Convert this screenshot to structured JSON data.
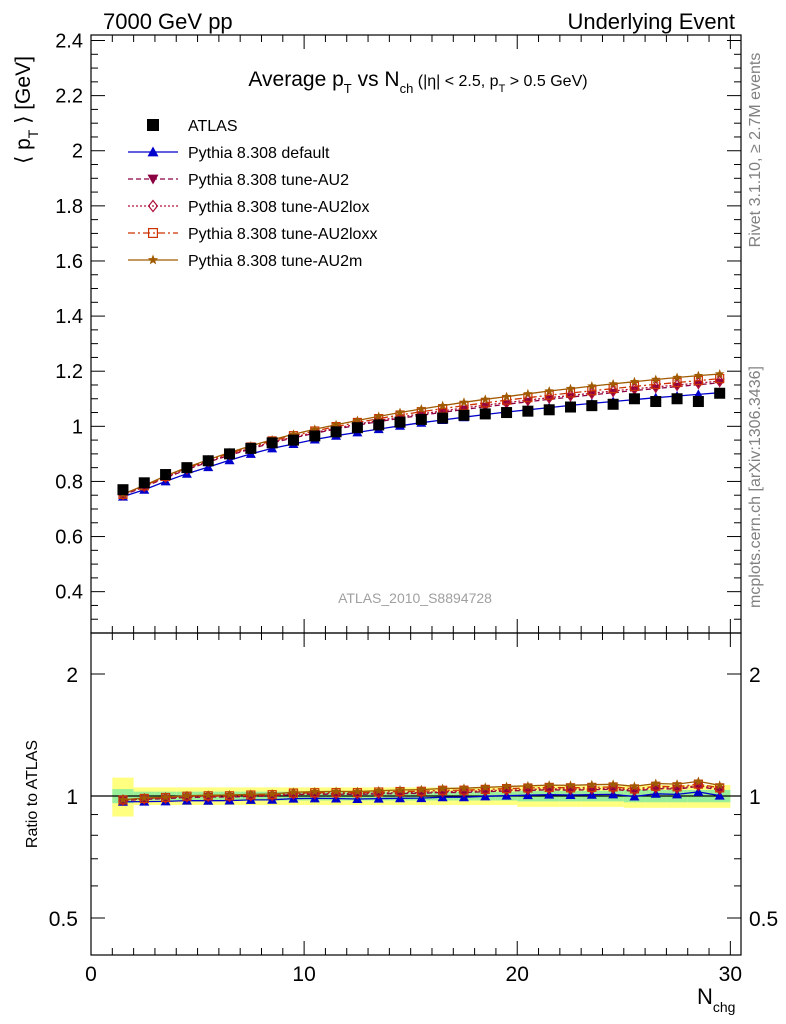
{
  "header": {
    "left": "7000 GeV pp",
    "right": "Underlying Event"
  },
  "side": {
    "rivet": "Rivet 3.1.10, ≥ 2.7M events",
    "mcplots": "mcplots.cern.ch [arXiv:1306.3436]"
  },
  "chart_data": {
    "type": "scatter",
    "title": "Average p_T vs N_ch (|η| < 2.5, p_T > 0.5 GeV)",
    "analysis_label": "ATLAS_2010_S8894728",
    "xlabel": "N_chg",
    "ylabel": "⟨ p_T ⟩ [GeV]",
    "ratio_ylabel": "Ratio to ATLAS",
    "xlim": [
      0,
      30.5
    ],
    "ylim": [
      0.25,
      2.42
    ],
    "ratio_ylim": [
      0.35,
      2.5
    ],
    "ratio_log_scale": true,
    "x_ticks": [
      "0",
      "10",
      "20",
      "30"
    ],
    "y_ticks": [
      "0.4",
      "0.6",
      "0.8",
      "1",
      "1.2",
      "1.4",
      "1.6",
      "1.8",
      "2",
      "2.2",
      "2.4"
    ],
    "ratio_ticks": [
      "0.5",
      "1",
      "2"
    ],
    "legend_position": "top-left",
    "x": [
      1.5,
      2.5,
      3.5,
      4.5,
      5.5,
      6.5,
      7.5,
      8.5,
      9.5,
      10.5,
      11.5,
      12.5,
      13.5,
      14.5,
      15.5,
      16.5,
      17.5,
      18.5,
      19.5,
      20.5,
      21.5,
      22.5,
      23.5,
      24.5,
      25.5,
      26.5,
      27.5,
      28.5,
      29.5
    ],
    "series": [
      {
        "name": "ATLAS",
        "color": "#000000",
        "marker": "square",
        "line": "none",
        "values": [
          0.77,
          0.795,
          0.825,
          0.85,
          0.875,
          0.9,
          0.92,
          0.94,
          0.95,
          0.965,
          0.98,
          0.995,
          1.005,
          1.015,
          1.025,
          1.03,
          1.04,
          1.045,
          1.05,
          1.055,
          1.06,
          1.07,
          1.075,
          1.08,
          1.1,
          1.09,
          1.1,
          1.09,
          1.12
        ]
      },
      {
        "name": "Pythia 8.308 default",
        "color": "#0000cc",
        "marker": "triangle-up",
        "line": "solid",
        "values": [
          0.745,
          0.77,
          0.8,
          0.828,
          0.852,
          0.877,
          0.9,
          0.92,
          0.936,
          0.952,
          0.966,
          0.978,
          0.99,
          1.002,
          1.013,
          1.023,
          1.033,
          1.043,
          1.052,
          1.06,
          1.068,
          1.076,
          1.083,
          1.09,
          1.097,
          1.104,
          1.11,
          1.116,
          1.122
        ]
      },
      {
        "name": "Pythia 8.308 tune-AU2",
        "color": "#8b0040",
        "marker": "triangle-down",
        "line": "dashed",
        "values": [
          0.75,
          0.78,
          0.813,
          0.843,
          0.87,
          0.895,
          0.918,
          0.94,
          0.958,
          0.975,
          0.99,
          1.004,
          1.017,
          1.029,
          1.04,
          1.051,
          1.061,
          1.071,
          1.08,
          1.089,
          1.098,
          1.106,
          1.114,
          1.122,
          1.13,
          1.137,
          1.144,
          1.151,
          1.158
        ]
      },
      {
        "name": "Pythia 8.308 tune-AU2lox",
        "color": "#b0103a",
        "marker": "diamond-open",
        "line": "dotted",
        "values": [
          0.752,
          0.782,
          0.815,
          0.846,
          0.873,
          0.898,
          0.921,
          0.943,
          0.961,
          0.978,
          0.993,
          1.008,
          1.021,
          1.034,
          1.045,
          1.056,
          1.067,
          1.077,
          1.086,
          1.095,
          1.104,
          1.112,
          1.12,
          1.128,
          1.136,
          1.143,
          1.15,
          1.157,
          1.164
        ]
      },
      {
        "name": "Pythia 8.308 tune-AU2loxx",
        "color": "#cc3300",
        "marker": "square-open",
        "line": "dashdot",
        "values": [
          0.753,
          0.784,
          0.818,
          0.849,
          0.876,
          0.901,
          0.925,
          0.947,
          0.966,
          0.983,
          0.999,
          1.014,
          1.028,
          1.041,
          1.053,
          1.064,
          1.075,
          1.085,
          1.095,
          1.104,
          1.113,
          1.121,
          1.129,
          1.137,
          1.145,
          1.152,
          1.159,
          1.166,
          1.173
        ]
      },
      {
        "name": "Pythia 8.308 tune-AU2m",
        "color": "#a05a00",
        "marker": "star",
        "line": "solid",
        "values": [
          0.754,
          0.786,
          0.82,
          0.851,
          0.879,
          0.905,
          0.929,
          0.951,
          0.971,
          0.989,
          1.006,
          1.021,
          1.036,
          1.05,
          1.063,
          1.075,
          1.087,
          1.098,
          1.108,
          1.118,
          1.128,
          1.137,
          1.146,
          1.154,
          1.162,
          1.17,
          1.177,
          1.184,
          1.19
        ]
      }
    ],
    "ratio_band": {
      "inner": [
        0.04,
        0.025,
        0.025,
        0.025,
        0.025,
        0.025,
        0.025,
        0.025,
        0.025,
        0.025,
        0.025,
        0.025,
        0.025,
        0.025,
        0.025,
        0.025,
        0.025,
        0.025,
        0.025,
        0.03,
        0.03,
        0.03,
        0.03,
        0.03,
        0.035,
        0.035,
        0.035,
        0.035,
        0.035
      ],
      "outer": [
        0.11,
        0.05,
        0.05,
        0.05,
        0.05,
        0.05,
        0.05,
        0.05,
        0.05,
        0.05,
        0.05,
        0.05,
        0.05,
        0.05,
        0.05,
        0.05,
        0.05,
        0.05,
        0.05,
        0.06,
        0.06,
        0.06,
        0.06,
        0.06,
        0.065,
        0.065,
        0.065,
        0.065,
        0.065
      ]
    }
  }
}
